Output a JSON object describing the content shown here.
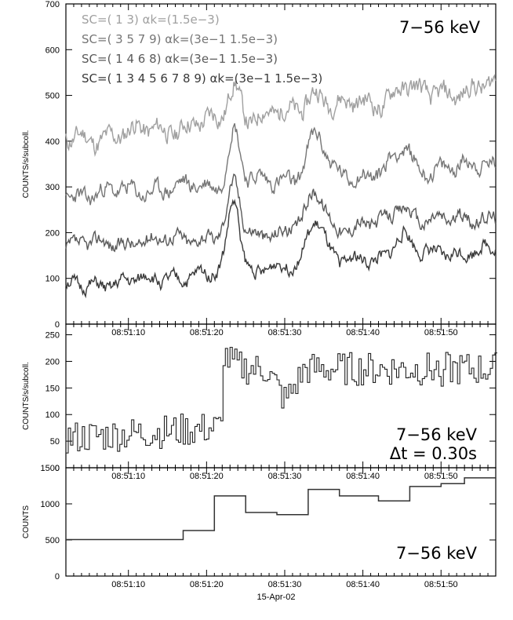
{
  "chart_data": [
    {
      "type": "line",
      "ylabel": "COUNTS/s/subcoll.",
      "ylim": [
        0,
        700
      ],
      "yticks": [
        "0",
        "100",
        "200",
        "300",
        "400",
        "500",
        "600",
        "700"
      ],
      "xticks": [
        "08:51:10",
        "08:51:20",
        "08:51:30",
        "08:51:40",
        "08:51:50"
      ],
      "energy_label": "7−56 keV",
      "series": [
        {
          "name": "SC=( 1 3)  αk=(1.5e−3)",
          "color": "#a0a0a0",
          "base": 400,
          "noise": 22,
          "flare": [
            80,
            40,
            25
          ],
          "trend": 120,
          "seed": 11
        },
        {
          "name": "SC=( 3 5 7 9)  αk=(3e−1 1.5e−3)",
          "color": "#767676",
          "base": 280,
          "noise": 18,
          "flare": [
            120,
            90,
            45
          ],
          "trend": 70,
          "seed": 23
        },
        {
          "name": "SC=( 1 4 6 8)  αk=(3e−1 1.5e−3)",
          "color": "#5a5a5a",
          "base": 170,
          "noise": 16,
          "flare": [
            110,
            80,
            40
          ],
          "trend": 65,
          "seed": 37
        },
        {
          "name": "SC=( 1 3 4 5 6 7 8 9)  αk=(3e−1 1.5e−3)",
          "color": "#3a3a3a",
          "base": 80,
          "noise": 15,
          "flare": [
            160,
            100,
            50
          ],
          "trend": 85,
          "seed": 51
        }
      ],
      "flare_times": [
        23.5,
        34,
        45
      ],
      "x_range_s": [
        2,
        57
      ]
    },
    {
      "type": "line",
      "ylabel": "COUNTS/s/subcoll.",
      "ylim": [
        0,
        270
      ],
      "yticks": [
        "0",
        "50",
        "100",
        "150",
        "200",
        "250"
      ],
      "xticks": [
        "08:51:10",
        "08:51:20",
        "08:51:30",
        "08:51:40",
        "08:51:50"
      ],
      "energy_label": "7−56 keV",
      "dt_label": "Δt = 0.30s",
      "step_s": 0.3,
      "base": 55,
      "noise": 32,
      "seed": 77,
      "rise_at": 22,
      "level_after": 185,
      "dip_at": 30,
      "x_range_s": [
        2,
        57
      ]
    },
    {
      "type": "line",
      "ylabel": "COUNTS",
      "ylim": [
        0,
        1500
      ],
      "yticks": [
        "0",
        "500",
        "1000",
        "1500"
      ],
      "xticks": [
        "08:51:10",
        "08:51:20",
        "08:51:30",
        "08:51:40",
        "08:51:50"
      ],
      "xlabel": "15-Apr-02",
      "energy_label": "7−56 keV",
      "steps": [
        {
          "x0": 2,
          "x1": 17,
          "y": 505
        },
        {
          "x0": 17,
          "x1": 21,
          "y": 630
        },
        {
          "x0": 21,
          "x1": 25,
          "y": 1110
        },
        {
          "x0": 25,
          "x1": 29,
          "y": 880
        },
        {
          "x0": 29,
          "x1": 33,
          "y": 850
        },
        {
          "x0": 33,
          "x1": 37,
          "y": 1200
        },
        {
          "x0": 37,
          "x1": 42,
          "y": 1110
        },
        {
          "x0": 42,
          "x1": 46,
          "y": 1040
        },
        {
          "x0": 46,
          "x1": 50,
          "y": 1240
        },
        {
          "x0": 50,
          "x1": 53,
          "y": 1280
        },
        {
          "x0": 53,
          "x1": 57,
          "y": 1360
        }
      ],
      "x_range_s": [
        2,
        57
      ]
    }
  ]
}
